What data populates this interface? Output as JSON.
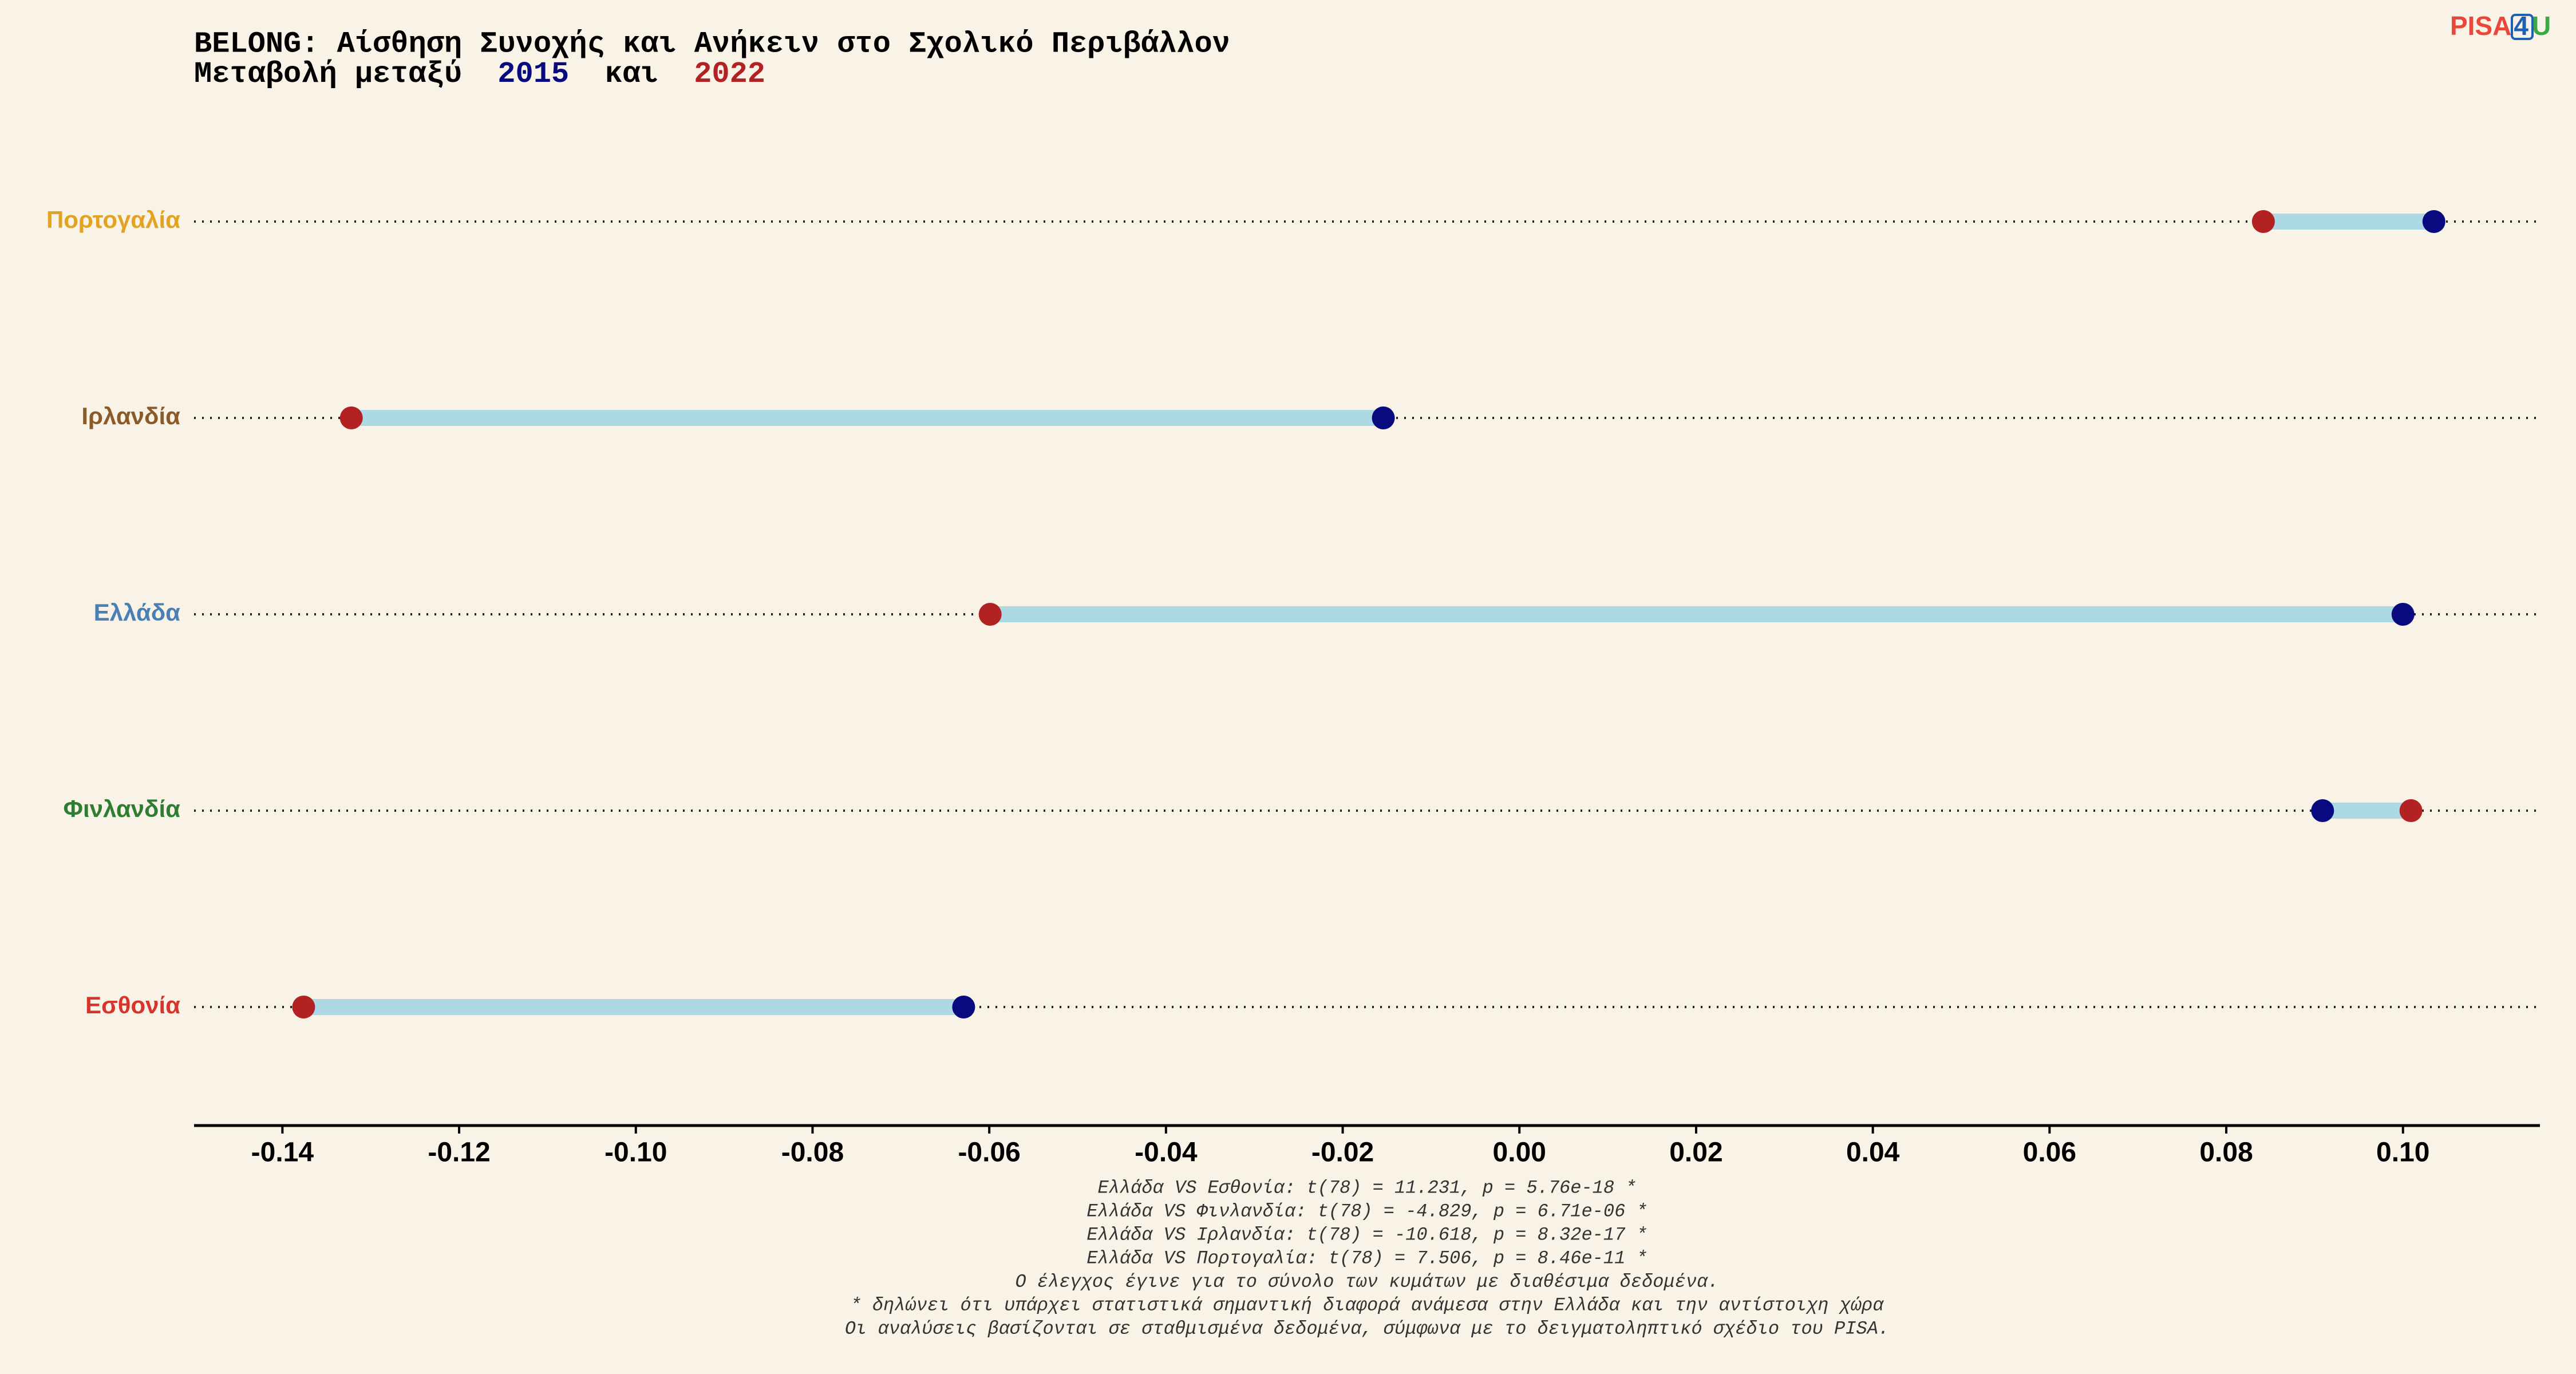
{
  "chart_data": {
    "type": "dumbbell",
    "title": "BELONG: Αίσθηση Συνοχής και Ανήκειν στο Σχολικό Περιβάλλον",
    "subtitle_prefix": "Μεταβολή μεταξύ",
    "subtitle_joiner": "και",
    "logo": [
      "PISA",
      "4",
      "U"
    ],
    "categories": [
      "Πορτογαλία",
      "Ιρλανδία",
      "Ελλάδα",
      "Φινλανδία",
      "Εσθονία"
    ],
    "category_colors": [
      "#e3a321",
      "#8b5a2b",
      "#4a7fb5",
      "#2e7d32",
      "#d9342b"
    ],
    "series": [
      {
        "name": "2015",
        "color": "#0a0a80",
        "values": [
          0.1035,
          -0.0154,
          0.1,
          0.0909,
          -0.0629
        ]
      },
      {
        "name": "2022",
        "color": "#b22222",
        "values": [
          0.0842,
          -0.1322,
          -0.0599,
          0.1009,
          -0.1376
        ]
      }
    ],
    "connector_color": "#add8e6",
    "xlim": [
      -0.15,
      0.1155
    ],
    "xticks": [
      -0.14,
      -0.12,
      {
        "value": -0.1,
        "label": "-0.10"
      },
      -0.08,
      -0.06,
      -0.04,
      -0.02,
      {
        "value": 0,
        "label": "0.00"
      },
      0.02,
      0.04,
      0.06,
      0.08,
      {
        "value": 0.1,
        "label": "0.10"
      }
    ],
    "footnotes": [
      "Ελλάδα VS Εσθονία: t(78) = 11.231, p = 5.76e-18 *",
      "Ελλάδα VS Φινλανδία: t(78) = -4.829, p = 6.71e-06 *",
      "Ελλάδα VS Ιρλανδία: t(78) = -10.618, p = 8.32e-17 *",
      "Ελλάδα VS Πορτογαλία: t(78) = 7.506, p = 8.46e-11 *",
      "Ο έλεγχος έγινε για το σύνολο των κυμάτων με διαθέσιμα δεδομένα.",
      "* δηλώνει ότι υπάρχει στατιστικά σημαντική διαφορά ανάμεσα στην Ελλάδα και την αντίστοιχη χώρα",
      "Οι αναλύσεις βασίζονται σε σταθμισμένα δεδομένα, σύμφωνα με το δειγματοληπτικό σχέδιο του PISA."
    ]
  }
}
